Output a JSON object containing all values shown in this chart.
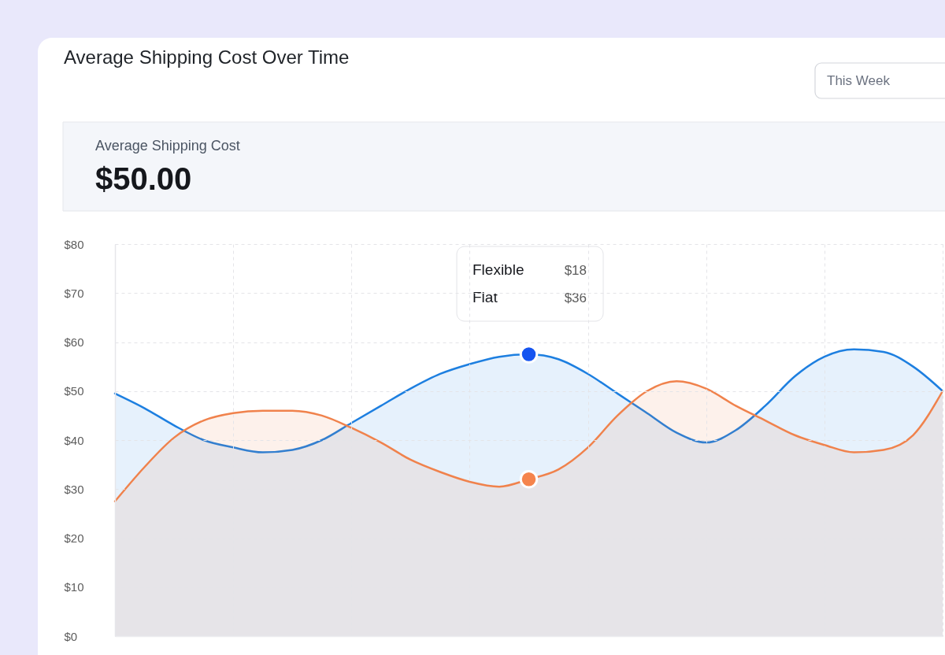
{
  "chart_data": {
    "type": "area",
    "title": "Average Shipping Cost Over Time",
    "annotations": [
      "This Week",
      "Average Shipping Cost",
      "$50.00",
      "Flexible",
      "$18",
      "Flat",
      "$36"
    ],
    "categories": [
      null,
      null,
      null,
      null,
      null,
      null,
      null,
      null,
      null,
      null,
      null,
      null,
      null,
      null,
      null,
      null,
      null,
      null,
      null,
      null,
      null,
      null,
      null,
      null,
      null,
      null,
      null,
      null,
      null
    ],
    "series": [
      {
        "color": "#1d7fe0",
        "values": [
          49.5,
          46.5,
          43,
          40,
          38.5,
          37.5,
          38,
          40,
          43.5,
          47,
          50.5,
          53.5,
          55.5,
          57,
          57.5,
          56.5,
          53.5,
          49.5,
          45.5,
          41.5,
          39.5,
          42,
          47,
          53,
          57,
          58.5,
          58,
          55,
          50
        ]
      },
      {
        "color": "#f0824c",
        "values": [
          27.5,
          34.5,
          40.5,
          44,
          45.5,
          46,
          46,
          45,
          42.5,
          39.5,
          36,
          33.5,
          31.5,
          30.5,
          32,
          34,
          38.5,
          45,
          50,
          52,
          50.5,
          47,
          44,
          41,
          39,
          37.5,
          38,
          41,
          50
        ]
      },
      {
        "type": "scatter",
        "marker": "circle",
        "color": "#1554f0",
        "values": [
          null,
          null,
          null,
          null,
          null,
          null,
          null,
          null,
          null,
          null,
          null,
          null,
          null,
          null,
          57.5,
          null,
          null,
          null,
          null,
          null,
          null,
          null,
          null,
          null,
          null,
          null,
          null,
          null,
          null
        ]
      },
      {
        "type": "scatter",
        "marker": "circle",
        "color": "#f5844c",
        "values": [
          null,
          null,
          null,
          null,
          null,
          null,
          null,
          null,
          null,
          null,
          null,
          null,
          null,
          null,
          32,
          null,
          null,
          null,
          null,
          null,
          null,
          null,
          null,
          null,
          null,
          null,
          null,
          null,
          null
        ]
      }
    ],
    "ylim": [
      0,
      80
    ],
    "yticks": [
      {
        "value": 0,
        "label": "$0"
      },
      {
        "value": 10,
        "label": "$10"
      },
      {
        "value": 20,
        "label": "$20"
      },
      {
        "value": 30,
        "label": "$30"
      },
      {
        "value": 40,
        "label": "$40"
      },
      {
        "value": 50,
        "label": "$50"
      },
      {
        "value": 60,
        "label": "$60"
      },
      {
        "value": 70,
        "label": "$70"
      },
      {
        "value": 80,
        "label": "$80"
      }
    ],
    "grid": true,
    "tick_labels": "y"
  }
}
